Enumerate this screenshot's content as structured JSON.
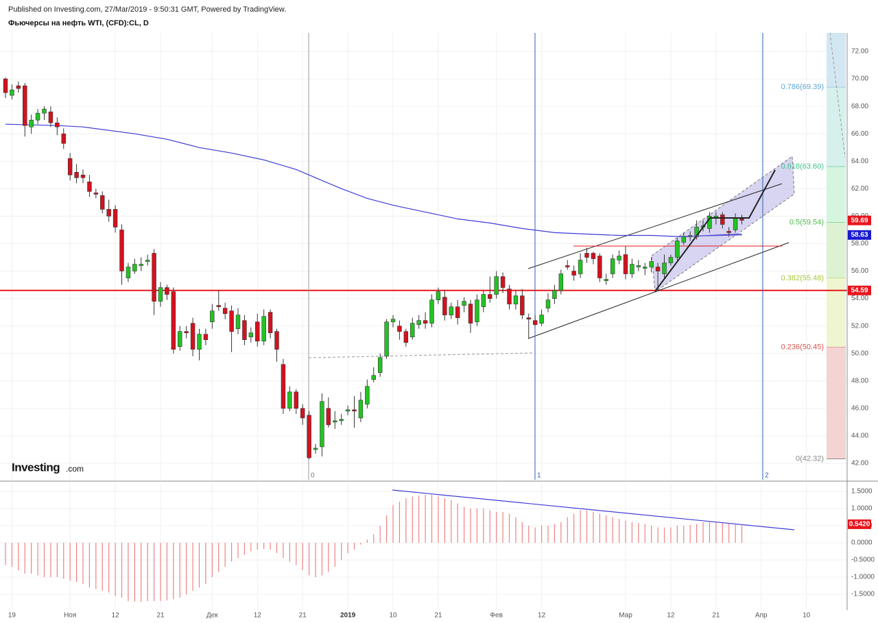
{
  "chart_data": {
    "type": "candlestick",
    "published": "Published on Investing.com, 27/Mar/2019 - 9:50:31 GMT, Powered by TradingView.",
    "title": "Фьючерсы на нефть WTI, (CFD):CL, D",
    "logo": {
      "name": "Investing",
      "suffix": ".com"
    },
    "up_color": "#22c322",
    "down_color": "#d3121e",
    "outline_color": "#333333",
    "grid": true,
    "xlim": [
      -0.85,
      130.3
    ],
    "xticks": [
      {
        "value": 1,
        "label": "19"
      },
      {
        "value": 10,
        "label": "Ноя"
      },
      {
        "value": 17,
        "label": "12"
      },
      {
        "value": 24,
        "label": "21"
      },
      {
        "value": 32,
        "label": "Дек"
      },
      {
        "value": 39,
        "label": "12"
      },
      {
        "value": 46,
        "label": "21"
      },
      {
        "value": 53,
        "label": "2019",
        "bold": true
      },
      {
        "value": 60,
        "label": "10"
      },
      {
        "value": 67,
        "label": "21"
      },
      {
        "value": 76,
        "label": "Фев"
      },
      {
        "value": 83,
        "label": "12"
      },
      {
        "value": 96,
        "label": "Мар"
      },
      {
        "value": 103,
        "label": "12"
      },
      {
        "value": 110,
        "label": "21"
      },
      {
        "value": 117,
        "label": "Апр"
      },
      {
        "value": 124,
        "label": "10"
      }
    ],
    "ylim": [
      40.8,
      73.35
    ],
    "yticks": [
      {
        "value": 72,
        "label": "72.00"
      },
      {
        "value": 70,
        "label": "70.00"
      },
      {
        "value": 68,
        "label": "68.00"
      },
      {
        "value": 66,
        "label": "66.00"
      },
      {
        "value": 64,
        "label": "64.00"
      },
      {
        "value": 62,
        "label": "62.00"
      },
      {
        "value": 60,
        "label": "60.00"
      },
      {
        "value": 58,
        "label": "58.00"
      },
      {
        "value": 56,
        "label": "56.00"
      },
      {
        "value": 54,
        "label": "54.00"
      },
      {
        "value": 52,
        "label": "52.00"
      },
      {
        "value": 50,
        "label": "50.00"
      },
      {
        "value": 48,
        "label": "48.00"
      },
      {
        "value": 46,
        "label": "46.00"
      },
      {
        "value": 44,
        "label": "44.00"
      },
      {
        "value": 42,
        "label": "42.00"
      }
    ],
    "open": [
      70.0,
      68.8,
      69.5,
      69.5,
      66.5,
      67.0,
      67.5,
      67.6,
      66.8,
      66.0,
      64.2,
      63.2,
      63.0,
      62.5,
      61.7,
      61.5,
      60.5,
      60.5,
      59.0,
      55.5,
      56.0,
      56.4,
      56.7,
      57.3,
      53.8,
      54.8,
      54.5,
      50.5,
      51.6,
      52.2,
      50.3,
      51.4,
      52.3,
      53.5,
      53.3,
      53.1,
      51.8,
      52.4,
      51.2,
      52.3,
      50.9,
      53.0,
      51.6,
      49.2,
      46.0,
      47.2,
      46.0,
      45.5,
      43.0,
      43.2,
      46.0,
      45.0,
      45.1,
      45.8,
      45.9,
      45.3,
      46.3,
      48.1,
      48.6,
      49.8,
      52.3,
      52.0,
      51.6,
      51.2,
      52.1,
      52.4,
      52.2,
      53.9,
      54.1,
      52.8,
      53.4,
      53.5,
      53.6,
      52.3,
      53.4,
      54.3,
      54.3,
      55.6,
      54.7,
      53.6,
      54.2,
      52.6,
      52.4,
      52.2,
      53.3,
      54.0,
      54.6,
      56.4,
      56.0,
      55.8,
      57.3,
      57.3,
      57.1,
      55.3,
      55.8,
      56.8,
      57.2,
      55.8,
      56.3,
      56.2,
      56.3,
      56.3,
      55.8,
      56.6,
      57.0,
      58.1,
      58.5,
      58.5,
      59.2,
      59.1,
      59.9,
      60.1,
      58.9,
      59.0,
      59.8
    ],
    "high": [
      70.1,
      69.6,
      69.8,
      69.7,
      67.4,
      67.8,
      68.0,
      68.0,
      67.2,
      66.4,
      64.6,
      63.8,
      63.4,
      63.0,
      62.0,
      61.8,
      61.2,
      60.8,
      59.4,
      56.6,
      56.9,
      57.0,
      57.2,
      57.6,
      55.2,
      55.0,
      54.8,
      52.0,
      52.0,
      52.6,
      51.8,
      51.8,
      53.6,
      54.6,
      53.7,
      53.5,
      53.3,
      52.8,
      51.9,
      52.9,
      53.2,
      53.2,
      51.8,
      49.6,
      47.6,
      47.4,
      46.3,
      45.8,
      43.4,
      47.1,
      46.8,
      45.8,
      45.6,
      46.2,
      46.9,
      47.2,
      48.1,
      49.0,
      50.0,
      52.5,
      52.8,
      52.4,
      51.8,
      52.6,
      52.8,
      53.0,
      54.3,
      54.8,
      54.6,
      53.7,
      53.9,
      54.1,
      53.9,
      54.3,
      54.6,
      55.6,
      56.0,
      55.9,
      55.0,
      54.6,
      54.7,
      52.9,
      52.8,
      53.2,
      54.4,
      55.0,
      56.1,
      56.8,
      56.4,
      57.3,
      57.7,
      57.4,
      57.3,
      55.8,
      57.2,
      57.5,
      57.8,
      56.9,
      56.8,
      56.6,
      57.0,
      56.6,
      57.2,
      57.2,
      58.4,
      58.8,
      58.9,
      59.7,
      59.7,
      60.3,
      60.3,
      60.3,
      59.2,
      60.2,
      60.1
    ],
    "low": [
      68.6,
      68.5,
      69.0,
      65.8,
      66.0,
      66.7,
      67.0,
      66.5,
      65.9,
      64.9,
      62.6,
      62.4,
      62.4,
      61.4,
      61.3,
      60.2,
      59.6,
      58.8,
      55.0,
      55.2,
      55.8,
      56.0,
      56.4,
      52.8,
      53.4,
      53.9,
      50.0,
      50.2,
      51.1,
      49.8,
      49.5,
      50.6,
      51.8,
      53.1,
      52.5,
      50.1,
      51.4,
      50.6,
      50.8,
      50.5,
      50.6,
      51.1,
      49.4,
      45.6,
      45.8,
      45.6,
      44.8,
      42.3,
      42.7,
      42.5,
      44.6,
      44.5,
      44.8,
      45.5,
      44.6,
      45.0,
      46.0,
      47.9,
      48.3,
      49.6,
      51.9,
      51.0,
      50.5,
      51.0,
      51.8,
      51.8,
      51.9,
      53.6,
      52.4,
      52.5,
      52.1,
      53.0,
      51.5,
      52.0,
      53.0,
      53.7,
      54.0,
      54.4,
      53.2,
      53.2,
      52.5,
      51.1,
      52.0,
      52.0,
      53.0,
      53.6,
      54.3,
      56.1,
      55.3,
      55.5,
      56.6,
      56.5,
      55.2,
      55.0,
      55.5,
      56.5,
      55.4,
      55.5,
      56.0,
      55.7,
      55.9,
      54.6,
      55.5,
      56.4,
      56.8,
      57.9,
      58.2,
      58.3,
      58.9,
      58.8,
      59.4,
      59.1,
      58.5,
      58.8,
      59.4
    ],
    "close": [
      69.0,
      69.2,
      69.3,
      66.6,
      67.0,
      67.5,
      67.8,
      66.8,
      66.5,
      65.3,
      63.0,
      62.8,
      62.8,
      61.8,
      61.6,
      60.5,
      60.0,
      59.2,
      56.0,
      56.3,
      56.5,
      56.5,
      56.8,
      53.8,
      54.8,
      54.3,
      50.3,
      51.6,
      51.5,
      50.3,
      51.4,
      51.0,
      53.1,
      53.4,
      52.9,
      51.6,
      52.8,
      51.0,
      51.5,
      50.9,
      52.7,
      51.5,
      50.3,
      46.0,
      47.2,
      46.0,
      45.3,
      42.4,
      43.1,
      46.5,
      44.8,
      45.1,
      45.2,
      45.9,
      45.8,
      46.6,
      47.6,
      48.4,
      49.7,
      52.3,
      52.5,
      51.6,
      50.8,
      52.2,
      52.4,
      52.2,
      53.9,
      54.5,
      52.8,
      53.4,
      52.6,
      53.8,
      52.2,
      53.9,
      54.3,
      54.0,
      55.6,
      54.8,
      53.6,
      54.2,
      52.8,
      52.5,
      52.1,
      52.8,
      53.9,
      54.6,
      55.8,
      56.3,
      55.7,
      56.8,
      57.0,
      56.9,
      55.5,
      55.4,
      56.9,
      57.1,
      55.8,
      56.5,
      56.4,
      56.3,
      56.7,
      56.0,
      56.6,
      57.0,
      58.2,
      58.5,
      58.6,
      59.2,
      59.3,
      60.0,
      60.0,
      59.4,
      58.8,
      59.9,
      59.7
    ],
    "ma": {
      "color": "#3b3bd6",
      "x": [
        0,
        8,
        12,
        20,
        25,
        30,
        35,
        40,
        45,
        48,
        52,
        56,
        60,
        65,
        70,
        75,
        80,
        85,
        90,
        95,
        100,
        105,
        109,
        114
      ],
      "values": [
        66.7,
        66.6,
        66.5,
        66.0,
        65.6,
        65.0,
        64.6,
        64.1,
        63.4,
        62.8,
        62.0,
        61.3,
        60.8,
        60.3,
        59.8,
        59.5,
        59.1,
        58.8,
        58.7,
        58.6,
        58.6,
        58.5,
        58.6,
        58.7
      ]
    },
    "price_labels": [
      {
        "value": 59.69,
        "label": "59.69",
        "color": "#e8141e"
      },
      {
        "value": 58.63,
        "label": "58.63",
        "color": "#1a1ad0"
      },
      {
        "value": 54.59,
        "label": "54.59",
        "color": "#e8141e"
      }
    ],
    "fib_levels": [
      {
        "label": "0.786(69.39)",
        "value": 69.39,
        "color": "#5aa7d6",
        "zone": "#d3e7f3"
      },
      {
        "label": "0.618(63.60)",
        "value": 63.6,
        "color": "#3cc48a",
        "zone": "#d6f0ee"
      },
      {
        "label": "0.5(59.54)",
        "value": 59.54,
        "color": "#4cbb4c",
        "zone": "#d5f5e0"
      },
      {
        "label": "0.382(55.48)",
        "value": 55.48,
        "color": "#a6c83a",
        "zone": "#dcf2d3"
      },
      {
        "label": "0.236(50.45)",
        "value": 50.45,
        "color": "#d9534f",
        "zone": "#eef5d0"
      },
      {
        "label": "0(42.32)",
        "value": 42.32,
        "color": "#8a8a8a",
        "zone": "#f4d3d3"
      }
    ],
    "time_zone_labels": [
      "0",
      "1",
      "2"
    ],
    "indicator": {
      "color": "#f08080",
      "ylim": [
        -1.96,
        1.76
      ],
      "yticks": [
        {
          "value": 1.5,
          "label": "1.5000"
        },
        {
          "value": 1,
          "label": "1.0000"
        },
        {
          "value": 0.5,
          "label": "0.5000"
        },
        {
          "value": 0,
          "label": "0.0000"
        },
        {
          "value": -0.5,
          "label": "-0.5000"
        },
        {
          "value": -1,
          "label": "-1.0000"
        },
        {
          "value": -1.5,
          "label": "-1.5000"
        }
      ],
      "last": {
        "value": 0.542,
        "label": "0.5420",
        "color": "#e8141e"
      },
      "values": [
        -0.65,
        -0.7,
        -0.8,
        -0.9,
        -0.9,
        -0.95,
        -1.0,
        -1.0,
        -1.0,
        -1.05,
        -1.1,
        -1.15,
        -1.2,
        -1.3,
        -1.35,
        -1.4,
        -1.45,
        -1.55,
        -1.6,
        -1.7,
        -1.72,
        -1.72,
        -1.7,
        -1.7,
        -1.7,
        -1.68,
        -1.65,
        -1.6,
        -1.5,
        -1.4,
        -1.3,
        -1.2,
        -1.0,
        -0.85,
        -0.7,
        -0.55,
        -0.45,
        -0.35,
        -0.25,
        -0.2,
        -0.18,
        -0.2,
        -0.3,
        -0.45,
        -0.55,
        -0.65,
        -0.8,
        -0.95,
        -1.0,
        -0.95,
        -0.85,
        -0.7,
        -0.5,
        -0.3,
        -0.2,
        -0.05,
        0.1,
        0.25,
        0.5,
        0.8,
        1.1,
        1.2,
        1.3,
        1.35,
        1.38,
        1.4,
        1.4,
        1.35,
        1.3,
        1.25,
        1.15,
        1.05,
        1.0,
        1.0,
        1.0,
        0.95,
        0.9,
        0.9,
        0.85,
        0.75,
        0.6,
        0.5,
        0.45,
        0.5,
        0.5,
        0.55,
        0.6,
        0.75,
        0.85,
        0.95,
        0.95,
        0.9,
        0.85,
        0.8,
        0.75,
        0.7,
        0.65,
        0.6,
        0.58,
        0.55,
        0.5,
        0.45,
        0.45,
        0.45,
        0.5,
        0.5,
        0.52,
        0.55,
        0.6,
        0.62,
        0.6,
        0.58,
        0.55,
        0.55,
        0.54
      ]
    }
  }
}
